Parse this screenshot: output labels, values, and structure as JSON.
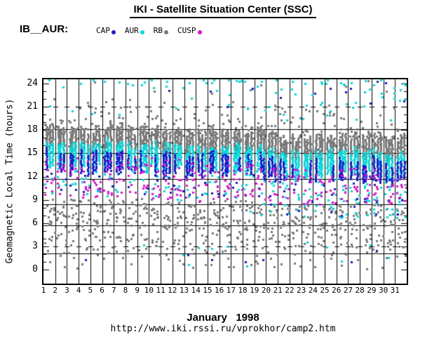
{
  "header": {
    "title": "IKI - Satellite Situation Center (SSC)",
    "param_label": "IB__AUR:"
  },
  "legend": {
    "items": [
      {
        "label": "CAP",
        "color": "#1b1bd6"
      },
      {
        "label": "AUR",
        "color": "#00dcdc"
      },
      {
        "label": "RB",
        "color": "#7a7a7a"
      },
      {
        "label": "CUSP",
        "color": "#e312d2"
      }
    ]
  },
  "footer": {
    "caption": "January   1998",
    "url": "http://www.iki.rssi.ru/vprokhor/camp2.htm"
  },
  "chart_data": {
    "type": "scatter",
    "title": "IKI - Satellite Situation Center (SSC)",
    "ylabel": "Geomagnetic Local Time (hours)",
    "xlabel_caption": "January 1998",
    "x_ticks": [
      1,
      2,
      3,
      4,
      5,
      6,
      7,
      8,
      9,
      10,
      11,
      12,
      13,
      14,
      15,
      16,
      17,
      18,
      19,
      20,
      21,
      22,
      23,
      24,
      25,
      26,
      27,
      28,
      29,
      30,
      31
    ],
    "y_ticks": [
      0,
      3,
      6,
      9,
      12,
      15,
      18,
      21,
      24
    ],
    "y_minor_step": 1,
    "ylim": [
      -1.8,
      24.55
    ],
    "xlim": [
      1,
      32
    ],
    "grid": {
      "vertical_day_lines": true,
      "reference_lines_hours": [
        18.15,
        15.0,
        11.7,
        8.45,
        5.75,
        2.05
      ],
      "day_line_dash_hours": [
        3,
        21
      ]
    },
    "legend_position": "top-left",
    "dot_size": 3,
    "seed": 19980,
    "drift": {
      "total": 1.45,
      "wiggle": 0.25,
      "period": 9.5
    },
    "draw_order": [
      "RB",
      "AUR",
      "CAP",
      "CUSP"
    ],
    "series": [
      {
        "name": "CAP",
        "color": "#1b1bd6",
        "bands": [
          {
            "kind": "runs",
            "passes": 3,
            "pass_prob": 0.6,
            "top": 15.3,
            "bottom": 13.15,
            "top_jitter": 0.5,
            "bottom_jitter": 0.8,
            "step": 0.25
          },
          {
            "kind": "scatter",
            "days": [
              1,
              31
            ],
            "hours": [
              9.9,
              13.2
            ],
            "per_day": 2.0,
            "drift_mult": 1,
            "bias": 0
          },
          {
            "kind": "scatter",
            "days": [
              8,
              31
            ],
            "hours": [
              21.0,
              24.3
            ],
            "per_day": 0.08,
            "per_day_end": 0.7,
            "drift_mult": 0,
            "bias": 0
          },
          {
            "kind": "scatter",
            "days": [
              18,
              31
            ],
            "hours": [
              7.0,
              9.3
            ],
            "per_day": 0.15,
            "per_day_end": 1.5,
            "drift_mult": 0,
            "bias": 0
          },
          {
            "kind": "scatter",
            "days": [
              1,
              31
            ],
            "hours": [
              0.8,
              2.6
            ],
            "per_day": 0.18,
            "drift_mult": 0,
            "bias": 0
          }
        ]
      },
      {
        "name": "AUR",
        "color": "#00dcdc",
        "bands": [
          {
            "kind": "runs",
            "passes": 3,
            "pass_prob": 1,
            "top": 16.4,
            "bottom": 13.85,
            "top_jitter": 0.45,
            "bottom_jitter": 0.95,
            "step": 0.22
          },
          {
            "kind": "scatter",
            "days": [
              1,
              31
            ],
            "hours": [
              9.7,
              13.4
            ],
            "per_day": 4.5,
            "drift_mult": 1,
            "bias": 0
          },
          {
            "kind": "scatter",
            "days": [
              1,
              31
            ],
            "hours": [
              19.2,
              24.45
            ],
            "per_day": 1.1,
            "per_day_end": 4.2,
            "drift_mult": 0,
            "bias": -1
          },
          {
            "kind": "scatter",
            "days": [
              17,
              31
            ],
            "hours": [
              6.7,
              9.4
            ],
            "per_day": 0.5,
            "per_day_end": 5,
            "drift_mult": 0,
            "bias": 0
          },
          {
            "kind": "scatter",
            "days": [
              1,
              31
            ],
            "hours": [
              0.4,
              3.6
            ],
            "per_day": 0.5,
            "drift_mult": 0,
            "bias": 0
          }
        ]
      },
      {
        "name": "RB",
        "color": "#7a7a7a",
        "bands": [
          {
            "kind": "runs",
            "passes": 3,
            "pass_prob": 1,
            "top": 18.5,
            "bottom": 15.95,
            "top_jitter": 0.55,
            "bottom_jitter": 0.55,
            "step": 0.21
          },
          {
            "kind": "scatter",
            "days": [
              1,
              31
            ],
            "hours": [
              15.9,
              18.6
            ],
            "per_day": 10,
            "drift_mult": 1,
            "bias": 0
          },
          {
            "kind": "scatter",
            "days": [
              1,
              31
            ],
            "hours": [
              18.6,
              22.4
            ],
            "per_day": 5.5,
            "drift_mult": 1,
            "bias": 1
          },
          {
            "kind": "scatter",
            "days": [
              1,
              31
            ],
            "hours": [
              22.6,
              24.4
            ],
            "per_day": 0.3,
            "drift_mult": 0,
            "bias": 0
          },
          {
            "kind": "scatter",
            "days": [
              1,
              31
            ],
            "hours": [
              5.8,
              9.3
            ],
            "per_day": 12,
            "drift_mult": 0.6,
            "bias": 0
          },
          {
            "kind": "scatter",
            "days": [
              1,
              31
            ],
            "hours": [
              3.7,
              5.8
            ],
            "per_day": 5,
            "drift_mult": 0.5,
            "bias": 0
          },
          {
            "kind": "scatter",
            "days": [
              1,
              31
            ],
            "hours": [
              2.1,
              3.7
            ],
            "per_day": 2,
            "drift_mult": 0.4,
            "bias": 0
          },
          {
            "kind": "scatter",
            "days": [
              1,
              31
            ],
            "hours": [
              0.2,
              2.1
            ],
            "per_day": 1.2,
            "drift_mult": 0.2,
            "bias": 0
          }
        ]
      },
      {
        "name": "CUSP",
        "color": "#e312d2",
        "bands": [
          {
            "kind": "scatter",
            "days": [
              1,
              31
            ],
            "hours": [
              9.5,
              14.1
            ],
            "per_day": 9,
            "drift_mult": 0.9,
            "bias": 0
          },
          {
            "kind": "scatter",
            "days": [
              1,
              18
            ],
            "hours": [
              14.1,
              15.2
            ],
            "per_day": 1.0,
            "drift_mult": 1,
            "bias": 0
          },
          {
            "kind": "scatter",
            "days": [
              1,
              31
            ],
            "hours": [
              0.5,
              2.0
            ],
            "per_day": 0.07,
            "drift_mult": 0,
            "bias": 0
          }
        ]
      }
    ]
  }
}
